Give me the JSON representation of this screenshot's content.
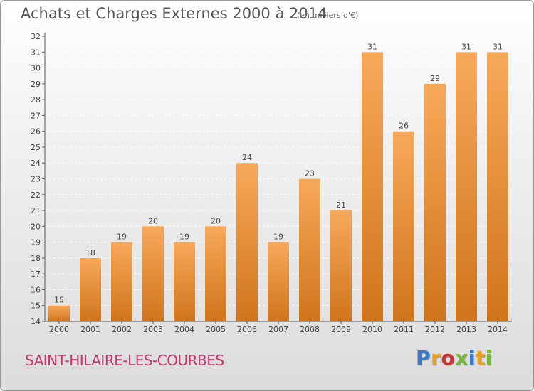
{
  "header": {
    "title": "Achats et Charges Externes 2000 à 2014",
    "unit": "(en milliers d'€)"
  },
  "footer": {
    "commune": "SAINT-HILAIRE-LES-COURBES",
    "logo_letters": [
      "P",
      "r",
      "o",
      "x",
      "i",
      "t",
      "i"
    ],
    "logo_colors": [
      "#3a78c3",
      "#e8a020",
      "#cc3333",
      "#7ab83a",
      "#3a78c3",
      "#e8a020",
      "#7ab83a"
    ]
  },
  "colors": {
    "bar_top": "#f7a95a",
    "bar_bottom": "#d0741c",
    "grid": "#ffffff",
    "text": "#444444"
  },
  "chart_data": {
    "type": "bar",
    "title": "Achats et Charges Externes 2000 à 2014",
    "subtitle": "(en milliers d'€)",
    "categories": [
      "2000",
      "2001",
      "2002",
      "2003",
      "2004",
      "2005",
      "2006",
      "2007",
      "2008",
      "2009",
      "2010",
      "2011",
      "2012",
      "2013",
      "2014"
    ],
    "values": [
      15,
      18,
      19,
      20,
      19,
      20,
      24,
      19,
      23,
      21,
      31,
      26,
      29,
      31,
      31
    ],
    "value_labels": [
      "15",
      "18",
      "19",
      "20",
      "19",
      "20",
      "24",
      "19",
      "23",
      "21",
      "31",
      "26",
      "29",
      "31",
      "31"
    ],
    "yticks": [
      "14",
      "15",
      "16",
      "17",
      "18",
      "19",
      "20",
      "21",
      "22",
      "23",
      "24",
      "25",
      "26",
      "27",
      "28",
      "29",
      "30",
      "31",
      "32"
    ],
    "ylim": [
      14,
      32
    ],
    "xlabel": "",
    "ylabel": "",
    "grid": true
  }
}
